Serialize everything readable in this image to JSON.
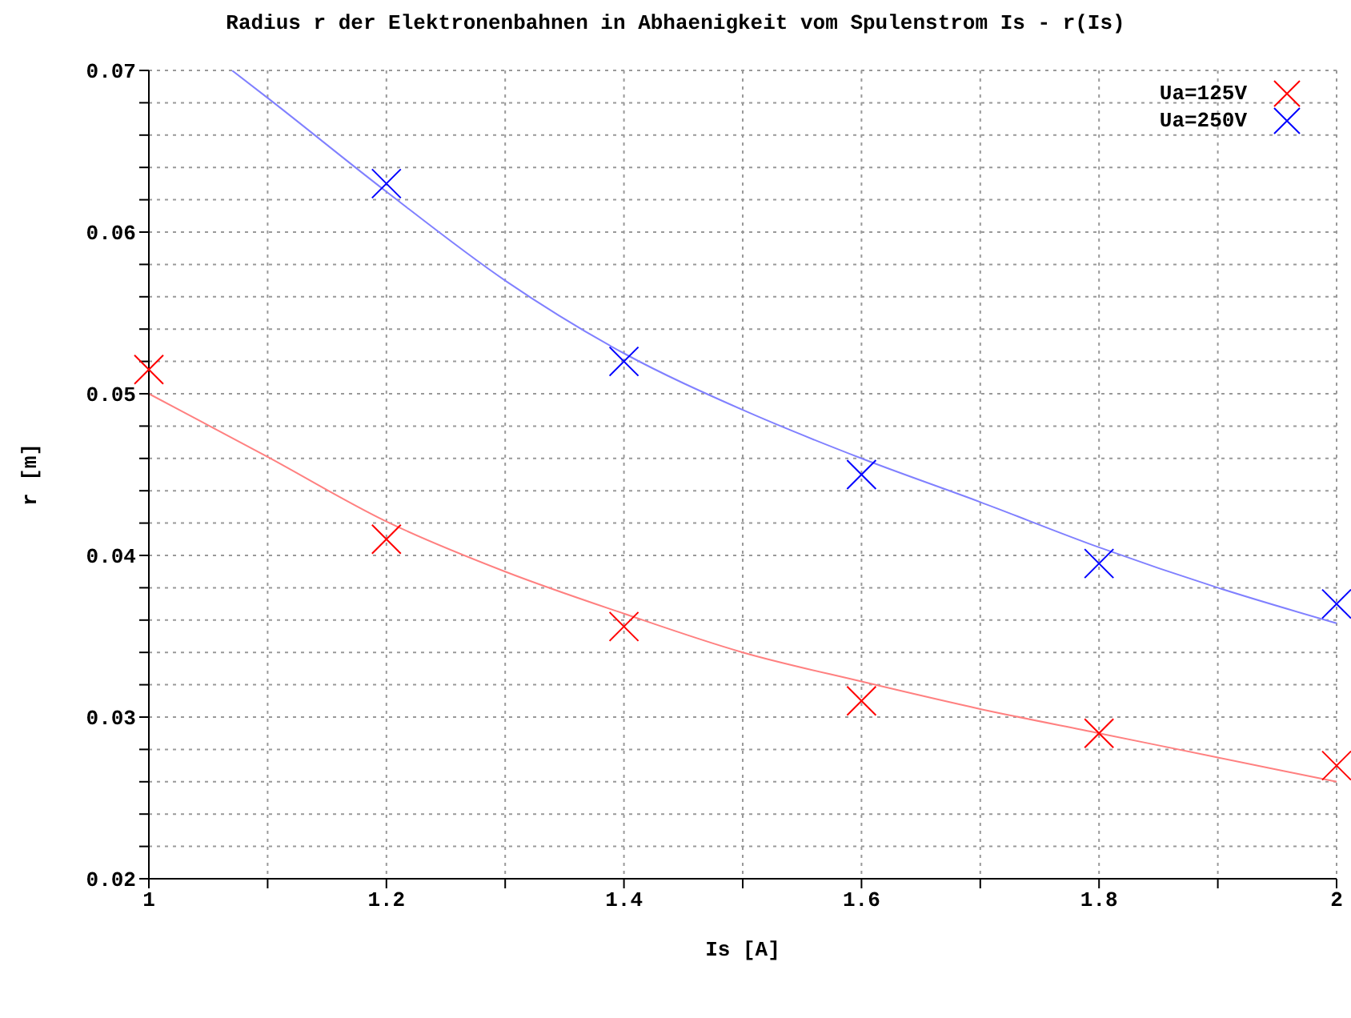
{
  "chart_data": {
    "type": "scatter",
    "title": "Radius r der Elektronenbahnen in Abhaenigkeit vom Spulenstrom Is - r(Is)",
    "xlabel": "Is [A]",
    "ylabel": "r [m]",
    "xlim": [
      1,
      2
    ],
    "xticks": [
      1,
      {
        "value": 1.1,
        "label": null
      },
      1.2,
      {
        "value": 1.3,
        "label": null
      },
      1.4,
      {
        "value": 1.5,
        "label": null
      },
      1.6,
      {
        "value": 1.7,
        "label": null
      },
      1.8,
      {
        "value": 1.9,
        "label": null
      },
      2
    ],
    "ylim": [
      0.02,
      0.07
    ],
    "yticks": [
      0.02,
      {
        "value": 0.022,
        "label": null
      },
      {
        "value": 0.024,
        "label": null
      },
      {
        "value": 0.026,
        "label": null
      },
      {
        "value": 0.028,
        "label": null
      },
      0.03,
      {
        "value": 0.032,
        "label": null
      },
      {
        "value": 0.034,
        "label": null
      },
      {
        "value": 0.036,
        "label": null
      },
      {
        "value": 0.038,
        "label": null
      },
      0.04,
      {
        "value": 0.042,
        "label": null
      },
      {
        "value": 0.044,
        "label": null
      },
      {
        "value": 0.046,
        "label": null
      },
      {
        "value": 0.048,
        "label": null
      },
      0.05,
      {
        "value": 0.052,
        "label": null
      },
      {
        "value": 0.054,
        "label": null
      },
      {
        "value": 0.056,
        "label": null
      },
      {
        "value": 0.058,
        "label": null
      },
      0.06,
      {
        "value": 0.062,
        "label": null
      },
      {
        "value": 0.064,
        "label": null
      },
      {
        "value": 0.066,
        "label": null
      },
      {
        "value": 0.068,
        "label": null
      },
      0.07
    ],
    "grid": true,
    "legend": "top right",
    "marker": "cross",
    "series": [
      {
        "name": "Ua=125V",
        "color": "#ff0000",
        "x": [
          1,
          1.2,
          1.4,
          1.6,
          1.8,
          2
        ],
        "values": [
          0.0515,
          0.041,
          0.0356,
          0.031,
          0.029,
          0.027
        ]
      },
      {
        "name": "Ua=250V",
        "color": "#0000ff",
        "x": [
          1.2,
          1.4,
          1.6,
          1.8,
          2
        ],
        "values": [
          0.063,
          0.052,
          0.045,
          0.0395,
          0.037
        ]
      },
      {
        "type": "line",
        "color": "#ff8080",
        "marker": "none",
        "x": [
          1,
          1.1,
          1.2,
          1.3,
          1.4,
          1.5,
          1.6,
          1.7,
          1.8,
          1.9,
          2
        ],
        "values": [
          0.05,
          0.0461,
          0.0421,
          0.039,
          0.0364,
          0.034,
          0.0322,
          0.0305,
          0.029,
          0.0275,
          0.026
        ]
      },
      {
        "type": "line",
        "color": "#8080ff",
        "marker": "none",
        "x": [
          1.07,
          1.1,
          1.2,
          1.3,
          1.4,
          1.5,
          1.6,
          1.7,
          1.8,
          1.9,
          2
        ],
        "values": [
          0.07,
          0.0683,
          0.0625,
          0.057,
          0.0525,
          0.049,
          0.046,
          0.0433,
          0.0405,
          0.038,
          0.0358
        ]
      }
    ]
  }
}
